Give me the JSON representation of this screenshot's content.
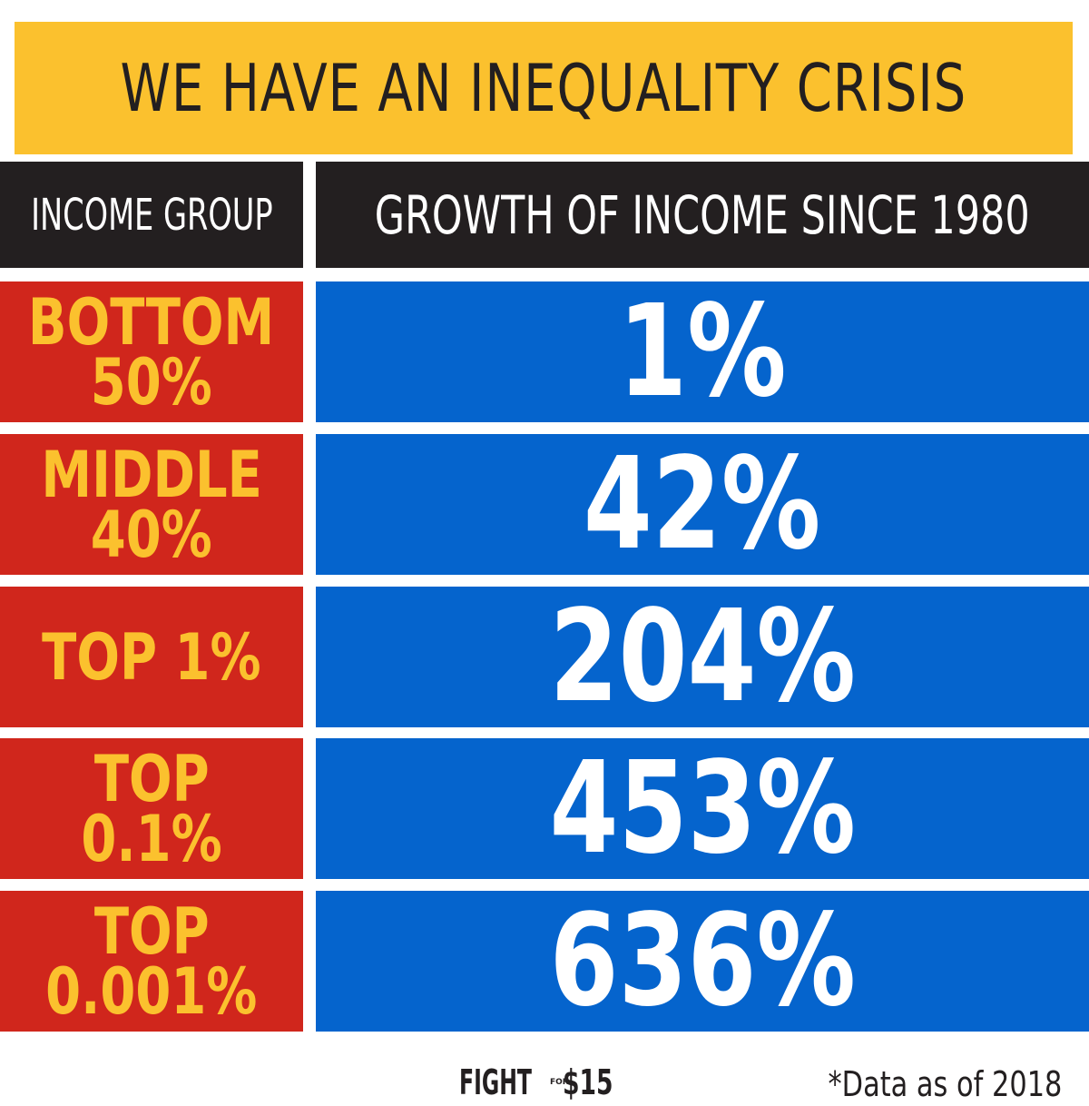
{
  "title": "WE HAVE AN INEQUALITY CRISIS",
  "headers": {
    "group": "INCOME GROUP",
    "growth": "GROWTH OF INCOME SINCE 1980"
  },
  "rows": [
    {
      "label_line1": "BOTTOM",
      "label_line2": "50%",
      "value": "1%"
    },
    {
      "label_line1": "MIDDLE",
      "label_line2": "40%",
      "value": "42%"
    },
    {
      "label_line1": "TOP 1%",
      "label_line2": "",
      "value": "204%"
    },
    {
      "label_line1": "TOP",
      "label_line2": "0.1%",
      "value": "453%"
    },
    {
      "label_line1": "TOP",
      "label_line2": "0.001%",
      "value": "636%"
    }
  ],
  "logo": {
    "word": "FIGHT",
    "small": "FOR",
    "amount": "$15"
  },
  "footnote": "*Data as of 2018",
  "colors": {
    "banner": "#fbc12e",
    "header": "#231f20",
    "label_cell": "#d0261c",
    "value_cell": "#0564cd",
    "label_text": "#fbc12e"
  }
}
